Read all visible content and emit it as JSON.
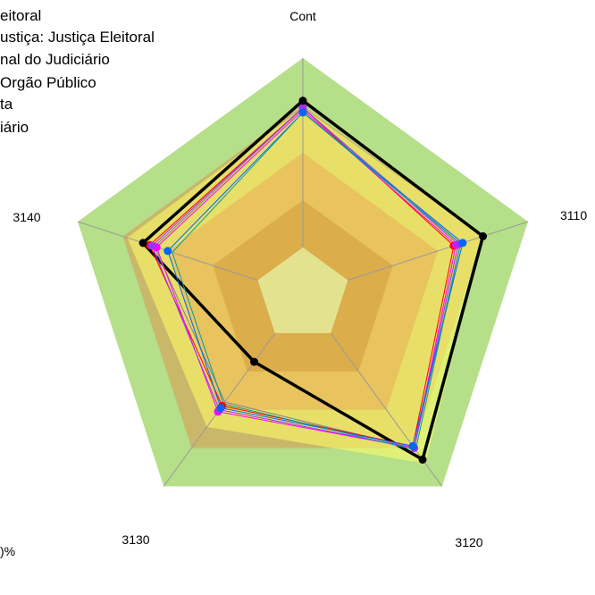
{
  "chart_data": {
    "type": "radar",
    "axes": [
      "Cont",
      "3110",
      "3120",
      "3130",
      "3140"
    ],
    "scale": {
      "min": 0,
      "max": 100
    },
    "bands": [
      {
        "from": 0,
        "to": 20,
        "color": "#c0c0c0"
      },
      {
        "from": 20,
        "to": 40,
        "color": "#b04a2a"
      },
      {
        "from": 40,
        "to": 60,
        "color": "#cc7a55"
      },
      {
        "from": 60,
        "to": 80,
        "color": "#c9b86a"
      },
      {
        "from": 80,
        "to": 100,
        "color": "#b5df89"
      }
    ],
    "yellow_region": [
      79,
      80,
      88,
      69,
      78
    ],
    "series": [
      {
        "color": "#000000",
        "width": 3.5,
        "values": [
          82,
          80,
          86,
          35,
          71
        ]
      },
      {
        "color": "#8c8c8c",
        "width": 1.2,
        "values": [
          79,
          70,
          80,
          56,
          66
        ],
        "marker": false
      },
      {
        "color": "#ff0000",
        "width": 1,
        "values": [
          79,
          67,
          79,
          58,
          68
        ]
      },
      {
        "color": "#ff00ff",
        "width": 1,
        "values": [
          78,
          68,
          80,
          61,
          65
        ]
      },
      {
        "color": "#9933ff",
        "width": 1,
        "values": [
          79,
          69,
          80,
          60,
          67
        ]
      },
      {
        "color": "#0066ff",
        "width": 1,
        "values": [
          77,
          71,
          79,
          59,
          60
        ]
      },
      {
        "color": "#00a0a0",
        "width": 1,
        "values": [
          77,
          70,
          81,
          57,
          58
        ],
        "marker": false
      }
    ],
    "legend": [
      "eitoral",
      "ustiça: Justiça Eleitoral",
      "nal do Judiciário",
      "Orgão Público",
      "ta",
      "iário"
    ],
    "bottom_left_text": ")%"
  }
}
